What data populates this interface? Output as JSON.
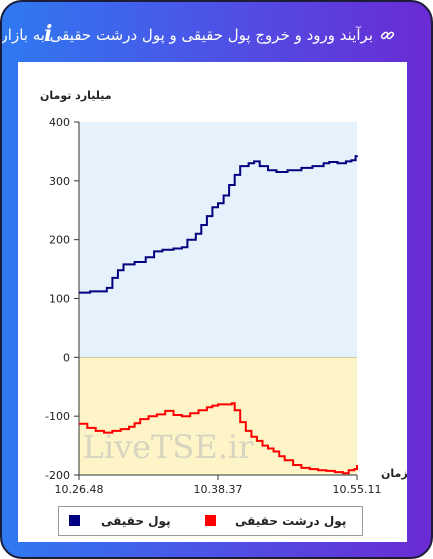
{
  "header": {
    "title": "برآیند ورود و خروج پول حقیقی و پول درشت حقیقی به بازار",
    "info_icon": "i",
    "link_icon": "link-icon"
  },
  "colors": {
    "header_gradient_start": "#2f79f1",
    "header_gradient_end": "#6a2bd3",
    "positive_area": "#e6f2fb",
    "negative_area": "#fdf5c8",
    "series_real_money": "#000080",
    "series_big_real_money": "#ff0000"
  },
  "chart_data": {
    "type": "line",
    "title": "",
    "ylabel": "میلیارد تومان",
    "xlabel": "زمان",
    "ylim": [
      -200,
      400
    ],
    "yticks": [
      "400",
      "300",
      "200",
      "100",
      "0",
      "-100",
      "-200"
    ],
    "xticks": [
      "10.26.48",
      "10.38.37",
      "10.55.11"
    ],
    "grid": false,
    "legend_position": "bottom",
    "watermark": "LiveTSE.ir",
    "series": [
      {
        "name": "پول حقیقی",
        "color": "#000080",
        "points": [
          [
            0,
            110
          ],
          [
            0.04,
            112
          ],
          [
            0.1,
            118
          ],
          [
            0.12,
            135
          ],
          [
            0.14,
            148
          ],
          [
            0.16,
            158
          ],
          [
            0.2,
            162
          ],
          [
            0.24,
            170
          ],
          [
            0.27,
            180
          ],
          [
            0.3,
            183
          ],
          [
            0.34,
            185
          ],
          [
            0.37,
            187
          ],
          [
            0.39,
            200
          ],
          [
            0.42,
            210
          ],
          [
            0.44,
            225
          ],
          [
            0.46,
            240
          ],
          [
            0.48,
            255
          ],
          [
            0.5,
            262
          ],
          [
            0.52,
            275
          ],
          [
            0.54,
            293
          ],
          [
            0.56,
            310
          ],
          [
            0.58,
            325
          ],
          [
            0.61,
            330
          ],
          [
            0.63,
            333
          ],
          [
            0.65,
            325
          ],
          [
            0.68,
            318
          ],
          [
            0.71,
            315
          ],
          [
            0.75,
            318
          ],
          [
            0.8,
            322
          ],
          [
            0.84,
            325
          ],
          [
            0.88,
            330
          ],
          [
            0.9,
            332
          ],
          [
            0.93,
            330
          ],
          [
            0.96,
            333
          ],
          [
            0.98,
            335
          ],
          [
            0.995,
            342
          ],
          [
            1,
            343
          ]
        ]
      },
      {
        "name": "پول درشت حقیقی",
        "color": "#ff0000",
        "points": [
          [
            0,
            -113
          ],
          [
            0.03,
            -120
          ],
          [
            0.06,
            -125
          ],
          [
            0.09,
            -128
          ],
          [
            0.12,
            -125
          ],
          [
            0.15,
            -122
          ],
          [
            0.18,
            -118
          ],
          [
            0.2,
            -112
          ],
          [
            0.22,
            -105
          ],
          [
            0.25,
            -100
          ],
          [
            0.28,
            -97
          ],
          [
            0.31,
            -91
          ],
          [
            0.34,
            -98
          ],
          [
            0.37,
            -100
          ],
          [
            0.4,
            -95
          ],
          [
            0.43,
            -90
          ],
          [
            0.46,
            -85
          ],
          [
            0.48,
            -82
          ],
          [
            0.5,
            -80
          ],
          [
            0.53,
            -80
          ],
          [
            0.55,
            -78
          ],
          [
            0.56,
            -90
          ],
          [
            0.58,
            -110
          ],
          [
            0.6,
            -125
          ],
          [
            0.62,
            -135
          ],
          [
            0.64,
            -142
          ],
          [
            0.66,
            -150
          ],
          [
            0.68,
            -155
          ],
          [
            0.7,
            -160
          ],
          [
            0.72,
            -168
          ],
          [
            0.74,
            -175
          ],
          [
            0.77,
            -183
          ],
          [
            0.8,
            -188
          ],
          [
            0.83,
            -190
          ],
          [
            0.86,
            -192
          ],
          [
            0.89,
            -193
          ],
          [
            0.92,
            -195
          ],
          [
            0.95,
            -197
          ],
          [
            0.97,
            -192
          ],
          [
            0.99,
            -190
          ],
          [
            1,
            -183
          ]
        ]
      }
    ]
  }
}
